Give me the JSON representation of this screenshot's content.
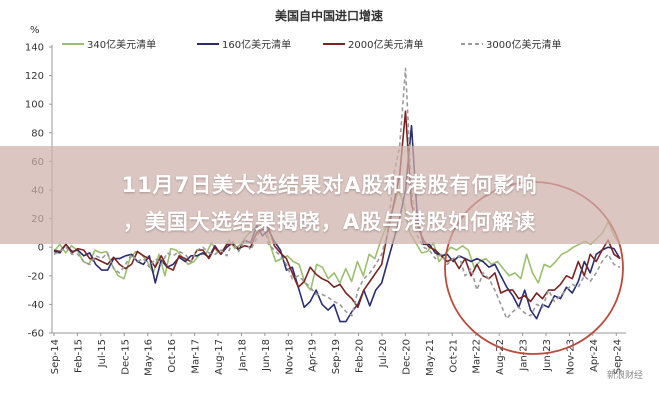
{
  "chart_data": {
    "type": "line",
    "title": "美国自中国进口增速",
    "ylabel": "%",
    "ylim": [
      -60,
      140
    ],
    "yticks": [
      -60,
      -40,
      -20,
      0,
      20,
      40,
      60,
      80,
      100,
      120,
      140
    ],
    "xticks": [
      "Sep-14",
      "Feb-15",
      "Jul-15",
      "Dec-15",
      "May-16",
      "Oct-16",
      "Mar-17",
      "Aug-17",
      "Jan-18",
      "Jun-18",
      "Nov-18",
      "Apr-19",
      "Sep-19",
      "Feb-20",
      "Jul-20",
      "Dec-20",
      "May-21",
      "Oct-21",
      "Mar-22",
      "Aug-22",
      "Jan-23",
      "Jun-23",
      "Nov-23",
      "Apr-24",
      "Sep-24"
    ],
    "grid": false,
    "legend": "top",
    "series": [
      {
        "name": "340亿美元清单",
        "color": "#9cbf6f",
        "style": "solid",
        "values": [
          -3,
          2,
          -4,
          1,
          -2,
          -10,
          -12,
          -2,
          -4,
          -3,
          -13,
          -20,
          -22,
          -8,
          -3,
          -5,
          -10,
          -18,
          -5,
          -20,
          -1,
          -2,
          -7,
          -12,
          -10,
          -5,
          -5,
          3,
          -3,
          -2,
          5,
          -1,
          2,
          8,
          12,
          15,
          20,
          2,
          -10,
          -8,
          -6,
          -10,
          -12,
          -25,
          -30,
          -12,
          -14,
          -22,
          -18,
          -25,
          -15,
          -24,
          -10,
          -20,
          -5,
          -8,
          5,
          15,
          25,
          40,
          30,
          10,
          3,
          -4,
          -3,
          3,
          -10,
          -5,
          0,
          -2,
          1,
          -2,
          -14,
          -10,
          -8,
          -12,
          -10,
          -15,
          -20,
          -18,
          -22,
          -5,
          -18,
          -25,
          -12,
          -14,
          -10,
          -5,
          -3,
          0,
          2,
          4,
          2,
          6,
          10,
          18,
          8,
          2
        ]
      },
      {
        "name": "160亿美元清单",
        "color": "#2a2e6e",
        "style": "solid",
        "values": [
          -3,
          -4,
          2,
          -3,
          -2,
          -6,
          -4,
          -12,
          -16,
          -16,
          -8,
          -8,
          -6,
          -5,
          -10,
          -12,
          -6,
          -25,
          -9,
          -14,
          -12,
          -7,
          -10,
          -6,
          -6,
          -4,
          -7,
          1,
          -5,
          0,
          3,
          -2,
          5,
          3,
          15,
          8,
          12,
          4,
          -2,
          -16,
          -14,
          -28,
          -42,
          -38,
          -30,
          -40,
          -44,
          -40,
          -52,
          -52,
          -45,
          -40,
          -30,
          -41,
          -30,
          -25,
          -10,
          5,
          20,
          40,
          85,
          20,
          2,
          2,
          -4,
          -6,
          -5,
          -10,
          -6,
          -8,
          -10,
          -8,
          -10,
          -14,
          -12,
          -20,
          -28,
          -34,
          -42,
          -30,
          -44,
          -50,
          -40,
          -42,
          -34,
          -36,
          -28,
          -32,
          -24,
          -10,
          -18,
          -5,
          -2,
          0,
          -1,
          -8
        ]
      },
      {
        "name": "2000亿美元清单",
        "color": "#7a2323",
        "style": "solid",
        "values": [
          -2,
          -3,
          2,
          -4,
          -1,
          -2,
          -8,
          -8,
          -10,
          -12,
          -7,
          -12,
          -15,
          -12,
          -3,
          -6,
          -8,
          -14,
          -6,
          -14,
          -16,
          -6,
          -8,
          -10,
          -2,
          -2,
          -8,
          0,
          -5,
          2,
          2,
          -1,
          1,
          0,
          10,
          12,
          14,
          1,
          -4,
          -8,
          -18,
          -28,
          -24,
          -14,
          -19,
          -22,
          -24,
          -28,
          -26,
          -32,
          -36,
          -42,
          -30,
          -24,
          -18,
          -12,
          10,
          30,
          50,
          95,
          30,
          15,
          5,
          0,
          -2,
          -6,
          -10,
          -8,
          -15,
          -8,
          -20,
          -12,
          -20,
          -22,
          -18,
          -32,
          -30,
          -30,
          -36,
          -34,
          -38,
          -32,
          -36,
          -30,
          -30,
          -26,
          -20,
          -22,
          -10,
          -20,
          -5,
          -10,
          -2,
          5,
          -5,
          -8
        ]
      },
      {
        "name": "3000亿美元清单",
        "color": "#9a9a9a",
        "style": "dashed",
        "values": [
          -5,
          -3,
          0,
          -5,
          -5,
          -10,
          -12,
          -6,
          -8,
          -4,
          -15,
          -18,
          -12,
          -5,
          -10,
          -8,
          -14,
          -8,
          -12,
          -4,
          -6,
          -3,
          -5,
          -10,
          -2,
          0,
          -4,
          -5,
          -2,
          -6,
          4,
          -3,
          5,
          -2,
          6,
          18,
          2,
          -2,
          -6,
          -12,
          -22,
          -20,
          -24,
          -28,
          -33,
          -33,
          -35,
          -38,
          -40,
          -45,
          -48,
          -30,
          -22,
          -18,
          -12,
          -5,
          10,
          50,
          70,
          125,
          40,
          8,
          0,
          -2,
          -8,
          -5,
          -12,
          -8,
          -6,
          -20,
          -15,
          -30,
          -18,
          -22,
          -30,
          -40,
          -50,
          -45,
          -42,
          -46,
          -48,
          -40,
          -42,
          -30,
          -38,
          -34,
          -30,
          -26,
          -28,
          -20,
          -24,
          -18,
          -10,
          -5,
          -12,
          -14
        ]
      }
    ],
    "annotations": [
      {
        "type": "ellipse",
        "color": "#b94a3e",
        "label": "highlight recent period"
      }
    ]
  },
  "headline": {
    "line1": "11月7日美大选结果对A股和港股有何影响",
    "line2": "，美国大选结果揭晓，A股与港股如何解读"
  },
  "watermark": {
    "text": "新浪财经"
  }
}
